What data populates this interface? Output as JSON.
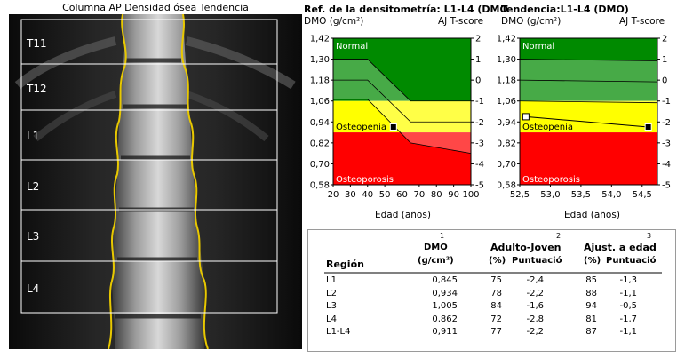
{
  "scan": {
    "title": "Columna AP Densidad ósea Tendencia",
    "labels": [
      "T11",
      "T12",
      "L1",
      "L2",
      "L3",
      "L4"
    ]
  },
  "chart_left": {
    "title": "Ref. de la densitometría: L1-L4 (DMO",
    "ylabel": "DMO (g/cm²)",
    "y2label": "AJ T-score",
    "xlabel": "Edad (años)",
    "zone_labels": [
      "Normal",
      "Osteopenia",
      "Osteoporosis"
    ]
  },
  "chart_right": {
    "title": "Tendencia:L1-L4 (DMO)",
    "ylabel": "DMO (g/cm²)",
    "y2label": "AJ T-score",
    "xlabel": "Edad (años)",
    "zone_labels": [
      "Normal",
      "Osteopenia",
      "Osteoporosis"
    ]
  },
  "chart_data": [
    {
      "type": "line",
      "title": "Ref. de la densitometría: L1-L4 (DMO",
      "xlabel": "Edad (años)",
      "ylabel": "DMO (g/cm²)",
      "y2label": "AJ T-score",
      "xlim": [
        20,
        100
      ],
      "ylim": [
        0.58,
        1.42
      ],
      "y2lim": [
        -5,
        2
      ],
      "x_ticks": [
        "20",
        "30",
        "40",
        "50",
        "60",
        "70",
        "80",
        "90",
        "100"
      ],
      "y_ticks": [
        "0,58",
        "0,70",
        "0,82",
        "0,94",
        "1,06",
        "1,18",
        "1,30",
        "1,42"
      ],
      "y2_ticks": [
        "-5",
        "-4",
        "-3",
        "-2",
        "-1",
        "0",
        "1",
        "2"
      ],
      "thresholds": {
        "normal_min": 1.06,
        "osteopenia_min": 0.88
      },
      "reference_curves": {
        "x": [
          20,
          40,
          65,
          100
        ],
        "plus1sd": [
          1.3,
          1.3,
          1.06,
          1.06
        ],
        "mean": [
          1.18,
          1.18,
          0.94,
          0.94
        ],
        "minus1sd": [
          1.07,
          1.07,
          0.82,
          0.76
        ]
      },
      "points": [
        {
          "x": 55,
          "y": 0.911,
          "marker": "filled-square"
        }
      ],
      "grid": false,
      "legend": "none"
    },
    {
      "type": "line",
      "title": "Tendencia:L1-L4 (DMO)",
      "xlabel": "Edad (años)",
      "ylabel": "DMO (g/cm²)",
      "y2label": "AJ T-score",
      "xlim": [
        52.5,
        54.75
      ],
      "ylim": [
        0.58,
        1.42
      ],
      "y2lim": [
        -5,
        2
      ],
      "x_ticks": [
        "52,5",
        "53,0",
        "53,5",
        "54,0",
        "54,5"
      ],
      "y_ticks": [
        "0,58",
        "0,70",
        "0,82",
        "0,94",
        "1,06",
        "1,18",
        "1,30",
        "1,42"
      ],
      "y2_ticks": [
        "-5",
        "-4",
        "-3",
        "-2",
        "-1",
        "0",
        "1",
        "2"
      ],
      "thresholds": {
        "normal_min": 1.06,
        "osteopenia_min": 0.88
      },
      "reference_curves": {
        "x": [
          52.5,
          54.75
        ],
        "plus1sd": [
          1.3,
          1.29
        ],
        "mean": [
          1.18,
          1.17
        ],
        "minus1sd": [
          1.06,
          1.05
        ]
      },
      "series": [
        {
          "x": [
            52.6,
            54.6
          ],
          "y": [
            0.97,
            0.911
          ]
        }
      ],
      "points": [
        {
          "x": 52.6,
          "y": 0.97,
          "marker": "open-square"
        },
        {
          "x": 54.6,
          "y": 0.911,
          "marker": "filled-square"
        }
      ],
      "grid": false,
      "legend": "none"
    }
  ],
  "table": {
    "col_numbers": [
      "1",
      "2",
      "3"
    ],
    "headers": {
      "region": "Región",
      "dmo": "DMO",
      "dmo_unit": "(g/cm²)",
      "adulto_joven": "Adulto-Joven",
      "ajust_edad": "Ajust. a edad",
      "pct": "(%)",
      "puntuacion": "Puntuació"
    },
    "rows": [
      {
        "region": "L1",
        "dmo": "0,845",
        "yp": "75",
        "ys": "-2,4",
        "ap": "85",
        "as": "-1,3"
      },
      {
        "region": "L2",
        "dmo": "0,934",
        "yp": "78",
        "ys": "-2,2",
        "ap": "88",
        "as": "-1,1"
      },
      {
        "region": "L3",
        "dmo": "1,005",
        "yp": "84",
        "ys": "-1,6",
        "ap": "94",
        "as": "-0,5"
      },
      {
        "region": "L4",
        "dmo": "0,862",
        "yp": "72",
        "ys": "-2,8",
        "ap": "81",
        "as": "-1,7"
      },
      {
        "region": "L1-L4",
        "dmo": "0,911",
        "yp": "77",
        "ys": "-2,2",
        "ap": "87",
        "as": "-1,1"
      }
    ]
  }
}
